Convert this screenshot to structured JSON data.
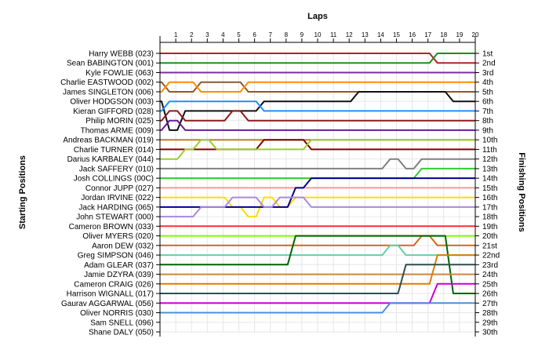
{
  "chart_data": {
    "type": "line",
    "title": "Laps",
    "ylabel_left": "Starting Positions",
    "ylabel_right": "Finishing Positions",
    "x": [
      0,
      1,
      2,
      3,
      4,
      5,
      6,
      7,
      8,
      9,
      10,
      11,
      12,
      13,
      14,
      15,
      16,
      17,
      18,
      19,
      20
    ],
    "xlim": [
      0,
      20
    ],
    "x_tick_labels": [
      "1",
      "2",
      "3",
      "4",
      "5",
      "6",
      "7",
      "8",
      "9",
      "10",
      "11",
      "12",
      "13",
      "14",
      "15",
      "16",
      "17",
      "18",
      "19",
      "20"
    ],
    "ylim": [
      1,
      30
    ],
    "y_inverted": true,
    "grid": true,
    "drivers": [
      "Harry WEBB (023)",
      "Sean BABINGTON (001)",
      "Kyle FOWLIE (063)",
      "Charlie EASTWOOD (002)",
      "James SINGLETON (006)",
      "Oliver HODGSON (003)",
      "Kieran GIFFORD (028)",
      "Philip MORIN (025)",
      "Thomas ARME (009)",
      "Andreas BACKMAN (019)",
      "Charlie TURNER (014)",
      "Darius KARBALEY (044)",
      "Jack SAFFERY (010)",
      "Josh COLLINGS (00C)",
      "Connor JUPP (027)",
      "Jordan IRVINE (022)",
      "Jack HARDING (065)",
      "John STEWART (000)",
      "Cameron BROWN (033)",
      "Oliver MYERS (020)",
      "Aaron DEW (032)",
      "Greg SIMPSON (046)",
      "Adam GLEAR (037)",
      "Jamie DZYRA (039)",
      "Cameron CRAIG (026)",
      "Harrison WIGNALL (017)",
      "Gaurav AGGARWAL (056)",
      "Oliver NORRIS (030)",
      "Sam SNELL (096)",
      "Shane DALY (050)"
    ],
    "finish_labels": [
      "1st",
      "2nd",
      "3rd",
      "4th",
      "5th",
      "6th",
      "7th",
      "8th",
      "9th",
      "10th",
      "11th",
      "12th",
      "13th",
      "14th",
      "15th",
      "16th",
      "17th",
      "18th",
      "19th",
      "20th",
      "21st",
      "22nd",
      "23rd",
      "24th",
      "25th",
      "26th",
      "27th",
      "28th",
      "29th",
      "30th"
    ],
    "series": [
      {
        "color": "#b22222",
        "values": [
          1,
          1,
          1,
          1,
          1,
          1,
          1,
          1,
          1,
          1,
          1,
          1,
          1,
          1,
          1,
          1,
          1,
          1,
          2,
          2,
          2
        ]
      },
      {
        "color": "#228b22",
        "values": [
          2,
          2,
          2,
          2,
          2,
          2,
          2,
          2,
          2,
          2,
          2,
          2,
          2,
          2,
          2,
          2,
          2,
          2,
          1,
          1,
          1
        ]
      },
      {
        "color": "#7b2d9b",
        "values": [
          3,
          3,
          3,
          3,
          3,
          3,
          3,
          3,
          3,
          3,
          3,
          3,
          3,
          3,
          3,
          3,
          3,
          3,
          3,
          3,
          3
        ]
      },
      {
        "color": "#8b5a2b",
        "values": [
          4,
          5,
          5,
          4,
          4,
          4,
          5,
          5,
          5,
          5,
          5,
          5,
          5,
          5,
          5,
          5,
          5,
          5,
          5,
          5,
          5
        ]
      },
      {
        "color": "#ff8c00",
        "values": [
          5,
          4,
          4,
          5,
          5,
          5,
          4,
          4,
          4,
          4,
          4,
          4,
          4,
          4,
          4,
          4,
          4,
          4,
          4,
          4,
          4
        ]
      },
      {
        "color": "#111111",
        "values": [
          6,
          9,
          7,
          7,
          7,
          7,
          7,
          6,
          6,
          6,
          6,
          6,
          6,
          5,
          5,
          5,
          5,
          5,
          5,
          6,
          6
        ]
      },
      {
        "color": "#1e90ff",
        "values": [
          7,
          6,
          6,
          6,
          6,
          6,
          6,
          7,
          7,
          7,
          7,
          7,
          7,
          7,
          7,
          7,
          7,
          7,
          7,
          7,
          7
        ]
      },
      {
        "color": "#8b1a1a",
        "values": [
          8,
          7,
          8,
          8,
          8,
          7,
          8,
          8,
          8,
          8,
          8,
          8,
          8,
          8,
          8,
          8,
          8,
          8,
          8,
          8,
          8
        ]
      },
      {
        "color": "#6a1b9a",
        "values": [
          9,
          8,
          9,
          9,
          9,
          9,
          9,
          9,
          9,
          9,
          9,
          9,
          9,
          9,
          9,
          9,
          9,
          9,
          9,
          9,
          9
        ]
      },
      {
        "color": "#b8860b",
        "values": [
          10,
          10,
          10,
          10,
          10,
          10,
          10,
          10,
          10,
          10,
          10,
          10,
          10,
          10,
          10,
          10,
          10,
          10,
          10,
          10,
          10
        ]
      },
      {
        "color": "#800000",
        "values": [
          11,
          11,
          11,
          11,
          11,
          11,
          11,
          10,
          10,
          10,
          11,
          11,
          11,
          11,
          11,
          11,
          11,
          11,
          11,
          11,
          11
        ]
      },
      {
        "color": "#9acd32",
        "values": [
          12,
          12,
          11,
          10,
          11,
          11,
          11,
          11,
          11,
          11,
          10,
          10,
          10,
          10,
          10,
          10,
          10,
          10,
          10,
          10,
          10
        ]
      },
      {
        "color": "#808080",
        "values": [
          13,
          13,
          13,
          13,
          13,
          13,
          13,
          13,
          13,
          13,
          13,
          13,
          13,
          13,
          13,
          12,
          13,
          12,
          12,
          12,
          12
        ]
      },
      {
        "color": "#32cd32",
        "values": [
          14,
          14,
          14,
          14,
          14,
          14,
          14,
          14,
          14,
          14,
          14,
          14,
          14,
          14,
          14,
          14,
          14,
          13,
          13,
          13,
          13
        ]
      },
      {
        "color": "#ff9999",
        "values": [
          15,
          15,
          15,
          15,
          15,
          15,
          15,
          15,
          15,
          15,
          15,
          15,
          15,
          15,
          15,
          15,
          15,
          15,
          15,
          15,
          15
        ]
      },
      {
        "color": "#ffdd00",
        "values": [
          16,
          16,
          16,
          16,
          16,
          17,
          18,
          16,
          17,
          16,
          16,
          16,
          16,
          16,
          16,
          16,
          16,
          16,
          16,
          16,
          16
        ]
      },
      {
        "color": "#00008b",
        "values": [
          17,
          17,
          17,
          17,
          17,
          17,
          17,
          17,
          17,
          15,
          14,
          14,
          14,
          14,
          14,
          14,
          14,
          14,
          14,
          14,
          14
        ]
      },
      {
        "color": "#aa88dd",
        "values": [
          18,
          18,
          18,
          17,
          17,
          16,
          16,
          17,
          16,
          16,
          17,
          17,
          17,
          17,
          17,
          17,
          17,
          17,
          17,
          17,
          17
        ]
      },
      {
        "color": "#ff3030",
        "values": [
          19,
          19,
          19,
          19,
          19,
          19,
          19,
          19,
          19,
          19,
          19,
          19,
          19,
          19,
          19,
          19,
          19,
          19,
          19,
          19,
          19
        ]
      },
      {
        "color": "#7cfc00",
        "values": [
          20,
          20,
          20,
          20,
          20,
          20,
          20,
          20,
          20,
          20,
          20,
          20,
          20,
          20,
          20,
          20,
          20,
          20,
          20,
          20,
          20
        ]
      },
      {
        "color": "#d2691e",
        "values": [
          21,
          21,
          21,
          21,
          21,
          21,
          21,
          21,
          21,
          21,
          21,
          21,
          21,
          21,
          21,
          21,
          21,
          20,
          21,
          21,
          21
        ]
      },
      {
        "color": "#66cdaa",
        "values": [
          22,
          22,
          22,
          22,
          22,
          22,
          22,
          22,
          22,
          22,
          22,
          22,
          22,
          22,
          22,
          21,
          22,
          22,
          22,
          22,
          22
        ]
      },
      {
        "color": "#006400",
        "values": [
          23,
          23,
          23,
          23,
          23,
          23,
          23,
          23,
          23,
          20,
          20,
          20,
          20,
          20,
          20,
          20,
          20,
          20,
          20,
          26,
          26
        ]
      },
      {
        "color": "#cd853f",
        "values": [
          24,
          24,
          24,
          24,
          24,
          24,
          24,
          24,
          24,
          24,
          24,
          24,
          24,
          24,
          24,
          24,
          24,
          24,
          24,
          24,
          24
        ]
      },
      {
        "color": "#e07b00",
        "values": [
          25,
          25,
          25,
          25,
          25,
          25,
          25,
          25,
          25,
          25,
          25,
          25,
          25,
          25,
          25,
          25,
          25,
          25,
          22,
          22,
          22
        ]
      },
      {
        "color": "#2f4f4f",
        "values": [
          26,
          26,
          26,
          26,
          26,
          26,
          26,
          26,
          26,
          26,
          26,
          26,
          26,
          26,
          26,
          26,
          23,
          23,
          23,
          23,
          23
        ]
      },
      {
        "color": "#cc00cc",
        "values": [
          27,
          27,
          27,
          27,
          27,
          27,
          27,
          27,
          27,
          27,
          27,
          27,
          27,
          27,
          27,
          27,
          27,
          27,
          25,
          25,
          25
        ]
      },
      {
        "color": "#4a90d9",
        "values": [
          28,
          28,
          28,
          28,
          28,
          28,
          28,
          28,
          28,
          28,
          28,
          28,
          28,
          28,
          28,
          27,
          27,
          27,
          27,
          27,
          27
        ]
      }
    ]
  }
}
